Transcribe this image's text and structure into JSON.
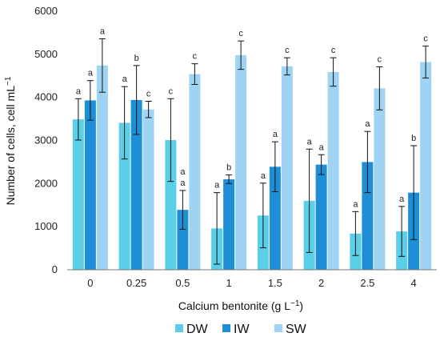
{
  "chart_data": {
    "type": "bar",
    "title": "",
    "xlabel": "Calcium bentonite (g L",
    "xlabel_sup": "−1",
    "xlabel_end": ")",
    "ylabel": "Number of cells, cell mL",
    "ylabel_sup": "−1",
    "ylim": [
      0,
      6000
    ],
    "yticks": [
      "0",
      "1000",
      "2000",
      "3000",
      "4000",
      "5000",
      "6000"
    ],
    "categories": [
      "0",
      "0.25",
      "0.5",
      "1",
      "1.5",
      "2",
      "2.5",
      "4"
    ],
    "legend_position": "bottom",
    "grid": false,
    "series": [
      {
        "name": "DW",
        "color": "#5bcfe8",
        "values": [
          3490,
          3410,
          3010,
          960,
          1260,
          1600,
          840,
          890
        ],
        "errors": [
          480,
          840,
          960,
          830,
          750,
          1200,
          510,
          580
        ],
        "letters": [
          "a",
          "a",
          "c",
          "a",
          "a",
          "a",
          "a",
          "a"
        ]
      },
      {
        "name": "IW",
        "color": "#1e8fd6",
        "values": [
          3930,
          3940,
          1390,
          2100,
          2390,
          2440,
          2500,
          1790
        ],
        "errors": [
          460,
          800,
          450,
          100,
          580,
          230,
          710,
          1090
        ],
        "letters": [
          "a",
          "b",
          "a",
          "b",
          "a",
          "a",
          "a",
          "b"
        ],
        "letters_extra": [
          "",
          "",
          "a",
          "",
          "",
          "",
          "",
          ""
        ]
      },
      {
        "name": "SW",
        "color": "#9fd3f3",
        "values": [
          4740,
          3720,
          4540,
          4980,
          4720,
          4590,
          4210,
          4820
        ],
        "errors": [
          620,
          190,
          240,
          330,
          200,
          330,
          500,
          370
        ],
        "letters": [
          "a",
          "c",
          "c",
          "c",
          "c",
          "c",
          "c",
          "c"
        ]
      }
    ]
  }
}
